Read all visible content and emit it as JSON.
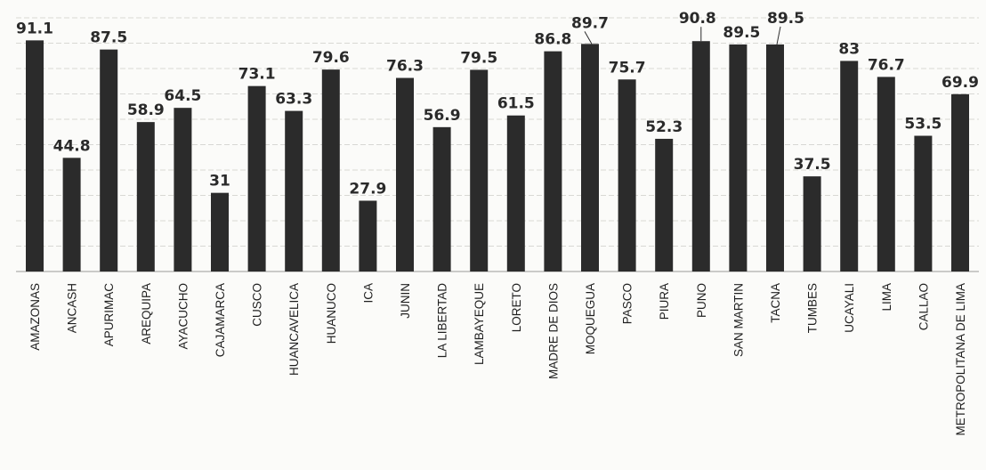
{
  "chart_data": {
    "type": "bar",
    "title": "",
    "xlabel": "",
    "ylabel": "",
    "ylim": [
      0,
      100
    ],
    "grid": true,
    "legend": "none",
    "bar_color": "#2b2b2b",
    "categories": [
      "AMAZONAS",
      "ANCASH",
      "APURIMAC",
      "AREQUIPA",
      "AYACUCHO",
      "CAJAMARCA",
      "CUSCO",
      "HUANCAVELICA",
      "HUANUCO",
      "ICA",
      "JUNIN",
      "LA LIBERTAD",
      "LAMBAYEQUE",
      "LORETO",
      "MADRE DE DIOS",
      "MOQUEGUA",
      "PASCO",
      "PIURA",
      "PUNO",
      "SAN MARTIN",
      "TACNA",
      "TUMBES",
      "UCAYALI",
      "LIMA",
      "CALLAO",
      "METROPOLITANA DE LIMA"
    ],
    "values": [
      91.1,
      44.8,
      87.5,
      58.9,
      64.5,
      31,
      73.1,
      63.3,
      79.6,
      27.9,
      76.3,
      56.9,
      79.5,
      61.5,
      86.8,
      89.7,
      75.7,
      52.3,
      90.8,
      89.5,
      89.5,
      37.5,
      83,
      76.7,
      53.5,
      69.9
    ],
    "labels": [
      "91.1",
      "44.8",
      "87.5",
      "58.9",
      "64.5",
      "31",
      "73.1",
      "63.3",
      "79.6",
      "27.9",
      "76.3",
      "56.9",
      "79.5",
      "61.5",
      "86.8",
      "89.7",
      "75.7",
      "52.3",
      "90.8",
      "89.5",
      "89.5",
      "37.5",
      "83",
      "76.7",
      "53.5",
      "69.9"
    ]
  }
}
